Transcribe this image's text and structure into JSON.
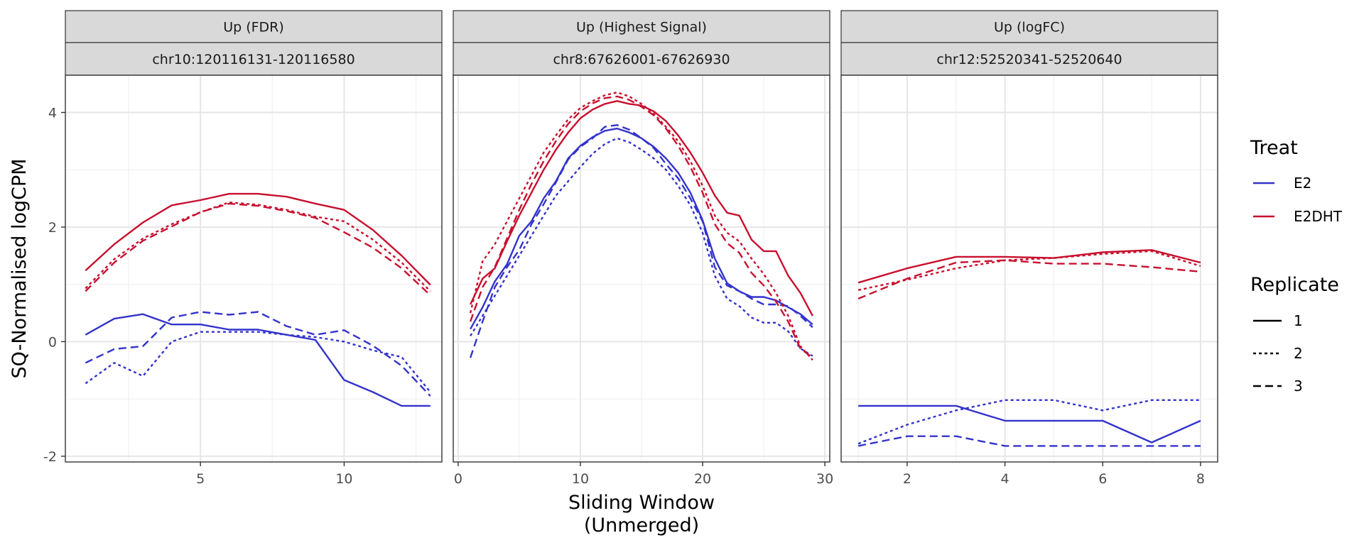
{
  "chart_data": {
    "type": "line",
    "xlabel_lines": [
      "Sliding Window",
      "(Unmerged)"
    ],
    "ylabel": "SQ-Normalised logCPM",
    "ylim": [
      -2.1,
      4.65
    ],
    "yticks": [
      -2,
      0,
      2,
      4
    ],
    "grid": true,
    "legend_position": "right",
    "colors": {
      "E2": "#3333cc",
      "E2DHT": "#c8102e"
    },
    "legend": {
      "treat_title": "Treat",
      "treat_items": [
        "E2",
        "E2DHT"
      ],
      "replicate_title": "Replicate",
      "replicate_items": [
        "1",
        "2",
        "3"
      ]
    },
    "panels": [
      {
        "strip1": "Up (FDR)",
        "strip2": "chr10:120116131-120116580",
        "xlim": [
          0.3,
          13.4
        ],
        "xticks": [
          5,
          10
        ],
        "series": [
          {
            "treat": "E2",
            "replicate": "1",
            "x": [
              1,
              2,
              3,
              4,
              5,
              6,
              7,
              8,
              9,
              10,
              11,
              12,
              13
            ],
            "y": [
              0.12,
              0.4,
              0.48,
              0.3,
              0.3,
              0.21,
              0.21,
              0.12,
              0.03,
              -0.67,
              -0.88,
              -1.12,
              -1.12
            ]
          },
          {
            "treat": "E2",
            "replicate": "2",
            "x": [
              1,
              2,
              3,
              4,
              5,
              6,
              7,
              8,
              9,
              10,
              11,
              12,
              13
            ],
            "y": [
              -0.73,
              -0.37,
              -0.6,
              0.0,
              0.17,
              0.17,
              0.17,
              0.12,
              0.08,
              0.0,
              -0.15,
              -0.27,
              -0.88
            ]
          },
          {
            "treat": "E2",
            "replicate": "3",
            "x": [
              1,
              2,
              3,
              4,
              5,
              6,
              7,
              8,
              9,
              10,
              11,
              12,
              13
            ],
            "y": [
              -0.37,
              -0.13,
              -0.08,
              0.42,
              0.52,
              0.47,
              0.52,
              0.27,
              0.12,
              0.2,
              -0.07,
              -0.42,
              -0.95
            ]
          },
          {
            "treat": "E2DHT",
            "replicate": "1",
            "x": [
              1,
              2,
              3,
              4,
              5,
              6,
              7,
              8,
              9,
              10,
              11,
              12,
              13
            ],
            "y": [
              1.24,
              1.7,
              2.08,
              2.38,
              2.47,
              2.58,
              2.58,
              2.53,
              2.41,
              2.3,
              1.95,
              1.5,
              0.99
            ]
          },
          {
            "treat": "E2DHT",
            "replicate": "2",
            "x": [
              1,
              2,
              3,
              4,
              5,
              6,
              7,
              8,
              9,
              10,
              11,
              12,
              13
            ],
            "y": [
              0.93,
              1.44,
              1.8,
              2.05,
              2.26,
              2.43,
              2.39,
              2.3,
              2.18,
              2.1,
              1.78,
              1.38,
              0.88
            ]
          },
          {
            "treat": "E2DHT",
            "replicate": "3",
            "x": [
              1,
              2,
              3,
              4,
              5,
              6,
              7,
              8,
              9,
              10,
              11,
              12,
              13
            ],
            "y": [
              0.88,
              1.38,
              1.76,
              2.01,
              2.26,
              2.41,
              2.37,
              2.28,
              2.16,
              1.91,
              1.64,
              1.28,
              0.81
            ]
          }
        ]
      },
      {
        "strip1": "Up (Highest Signal)",
        "strip2": "chr8:67626001-67626930",
        "xlim": [
          -0.4,
          30.4
        ],
        "xticks": [
          0,
          10,
          20,
          30
        ],
        "series": [
          {
            "treat": "E2",
            "replicate": "1",
            "x": [
              1,
              2,
              3,
              4,
              5,
              6,
              7,
              8,
              9,
              10,
              11,
              12,
              13,
              14,
              15,
              16,
              17,
              18,
              19,
              20,
              21,
              22,
              23,
              24,
              25,
              26,
              27,
              28,
              29
            ],
            "y": [
              0.22,
              0.6,
              1.05,
              1.35,
              1.85,
              2.1,
              2.5,
              2.8,
              3.2,
              3.42,
              3.57,
              3.68,
              3.72,
              3.65,
              3.55,
              3.4,
              3.2,
              2.95,
              2.6,
              2.12,
              1.45,
              1.02,
              0.88,
              0.78,
              0.78,
              0.72,
              0.6,
              0.48,
              0.3
            ]
          },
          {
            "treat": "E2",
            "replicate": "2",
            "x": [
              1,
              2,
              3,
              4,
              5,
              6,
              7,
              8,
              9,
              10,
              11,
              12,
              13,
              14,
              15,
              16,
              17,
              18,
              19,
              20,
              21,
              22,
              23,
              24,
              25,
              26,
              27,
              28,
              29
            ],
            "y": [
              0.1,
              0.45,
              0.8,
              1.15,
              1.5,
              1.85,
              2.2,
              2.55,
              2.8,
              3.05,
              3.28,
              3.45,
              3.55,
              3.48,
              3.35,
              3.2,
              3.0,
              2.72,
              2.38,
              1.9,
              1.15,
              0.75,
              0.62,
              0.42,
              0.33,
              0.33,
              0.18,
              -0.12,
              -0.25
            ]
          },
          {
            "treat": "E2",
            "replicate": "3",
            "x": [
              1,
              2,
              3,
              4,
              5,
              6,
              7,
              8,
              9,
              10,
              11,
              12,
              13,
              14,
              15,
              16,
              17,
              18,
              19,
              20,
              21,
              22,
              23,
              24,
              25,
              26,
              27,
              28,
              29
            ],
            "y": [
              -0.28,
              0.35,
              0.95,
              1.3,
              1.6,
              2.05,
              2.4,
              2.78,
              3.18,
              3.4,
              3.55,
              3.75,
              3.78,
              3.7,
              3.55,
              3.38,
              3.1,
              2.85,
              2.5,
              2.1,
              1.3,
              0.98,
              0.88,
              0.75,
              0.65,
              0.65,
              0.62,
              0.45,
              0.25
            ]
          },
          {
            "treat": "E2DHT",
            "replicate": "1",
            "x": [
              1,
              2,
              3,
              4,
              5,
              6,
              7,
              8,
              9,
              10,
              11,
              12,
              13,
              14,
              15,
              16,
              17,
              18,
              19,
              20,
              21,
              22,
              23,
              24,
              25,
              26,
              27,
              28,
              29
            ],
            "y": [
              0.65,
              1.1,
              1.28,
              1.75,
              2.2,
              2.6,
              3.0,
              3.35,
              3.65,
              3.9,
              4.05,
              4.15,
              4.2,
              4.15,
              4.12,
              4.02,
              3.85,
              3.6,
              3.3,
              2.95,
              2.55,
              2.25,
              2.2,
              1.78,
              1.58,
              1.58,
              1.15,
              0.85,
              0.45
            ]
          },
          {
            "treat": "E2DHT",
            "replicate": "2",
            "x": [
              1,
              2,
              3,
              4,
              5,
              6,
              7,
              8,
              9,
              10,
              11,
              12,
              13,
              14,
              15,
              16,
              17,
              18,
              19,
              20,
              21,
              22,
              23,
              24,
              25,
              26,
              27,
              28,
              29
            ],
            "y": [
              0.5,
              1.4,
              1.7,
              2.1,
              2.5,
              2.9,
              3.3,
              3.6,
              3.88,
              4.08,
              4.2,
              4.3,
              4.35,
              4.28,
              4.15,
              3.98,
              3.75,
              3.5,
              3.15,
              2.72,
              2.2,
              1.9,
              1.75,
              1.45,
              1.18,
              0.85,
              0.45,
              -0.08,
              -0.32
            ]
          },
          {
            "treat": "E2DHT",
            "replicate": "3",
            "x": [
              1,
              2,
              3,
              4,
              5,
              6,
              7,
              8,
              9,
              10,
              11,
              12,
              13,
              14,
              15,
              16,
              17,
              18,
              19,
              20,
              21,
              22,
              23,
              24,
              25,
              26,
              27,
              28,
              29
            ],
            "y": [
              0.35,
              0.95,
              1.3,
              1.8,
              2.3,
              2.75,
              3.15,
              3.5,
              3.8,
              4.02,
              4.16,
              4.25,
              4.28,
              4.22,
              4.1,
              3.95,
              3.72,
              3.42,
              3.05,
              2.6,
              2.05,
              1.72,
              1.55,
              1.2,
              0.98,
              0.7,
              0.35,
              -0.12,
              -0.28
            ]
          }
        ]
      },
      {
        "strip1": "Up (logFC)",
        "strip2": "chr12:52520341-52520640",
        "xlim": [
          0.65,
          8.35
        ],
        "xticks": [
          2,
          4,
          6,
          8
        ],
        "series": [
          {
            "treat": "E2",
            "replicate": "1",
            "x": [
              1,
              2,
              3,
              4,
              5,
              6,
              7,
              8
            ],
            "y": [
              -1.12,
              -1.12,
              -1.12,
              -1.38,
              -1.38,
              -1.38,
              -1.76,
              -1.38
            ]
          },
          {
            "treat": "E2",
            "replicate": "2",
            "x": [
              1,
              2,
              3,
              4,
              5,
              6,
              7,
              8
            ],
            "y": [
              -1.78,
              -1.45,
              -1.2,
              -1.02,
              -1.02,
              -1.2,
              -1.02,
              -1.02
            ]
          },
          {
            "treat": "E2",
            "replicate": "3",
            "x": [
              1,
              2,
              3,
              4,
              5,
              6,
              7,
              8
            ],
            "y": [
              -1.82,
              -1.65,
              -1.65,
              -1.82,
              -1.82,
              -1.82,
              -1.82,
              -1.82
            ]
          },
          {
            "treat": "E2DHT",
            "replicate": "1",
            "x": [
              1,
              2,
              3,
              4,
              5,
              6,
              7,
              8
            ],
            "y": [
              1.03,
              1.28,
              1.48,
              1.48,
              1.46,
              1.56,
              1.6,
              1.38
            ]
          },
          {
            "treat": "E2DHT",
            "replicate": "2",
            "x": [
              1,
              2,
              3,
              4,
              5,
              6,
              7,
              8
            ],
            "y": [
              0.9,
              1.08,
              1.28,
              1.42,
              1.46,
              1.53,
              1.58,
              1.32
            ]
          },
          {
            "treat": "E2DHT",
            "replicate": "3",
            "x": [
              1,
              2,
              3,
              4,
              5,
              6,
              7,
              8
            ],
            "y": [
              0.75,
              1.1,
              1.38,
              1.42,
              1.36,
              1.36,
              1.3,
              1.22
            ]
          }
        ]
      }
    ]
  }
}
